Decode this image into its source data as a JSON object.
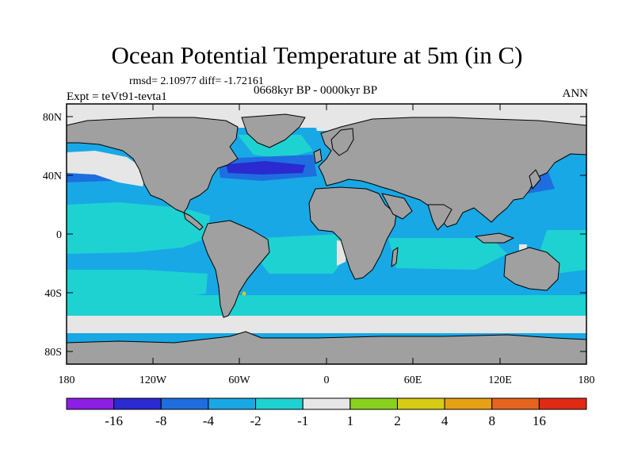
{
  "title": "Ocean Potential Temperature at 5m (in C)",
  "stats_line": "rmsd= 2.10977 diff= -1.72161",
  "period": "0668kyr BP - 0000kyr BP",
  "experiment": "Expt = teVt91-tevta1",
  "season": "ANN",
  "lat_ticks": [
    "80N",
    "40N",
    "0",
    "40S",
    "80S"
  ],
  "lon_ticks": [
    "180",
    "120W",
    "60W",
    "0",
    "60E",
    "120E",
    "180"
  ],
  "colorbar": {
    "labels": [
      "-16",
      "-8",
      "-4",
      "-2",
      "-1",
      "1",
      "2",
      "4",
      "8",
      "16"
    ],
    "colors": [
      "#8c1ee6",
      "#2a2ad0",
      "#1e6ee0",
      "#18a8e6",
      "#1ed2d2",
      "#e6e6e6",
      "#88d21e",
      "#d6cc14",
      "#e6a014",
      "#e6641e",
      "#e02a14"
    ]
  },
  "colors": {
    "land": "#a0a0a0",
    "ocean_default": "#18a8e6",
    "near_zero": "#e6e6e6",
    "moderate": "#1ed2d2",
    "strong": "#1e6ee0",
    "very_strong": "#2a2ad0"
  }
}
